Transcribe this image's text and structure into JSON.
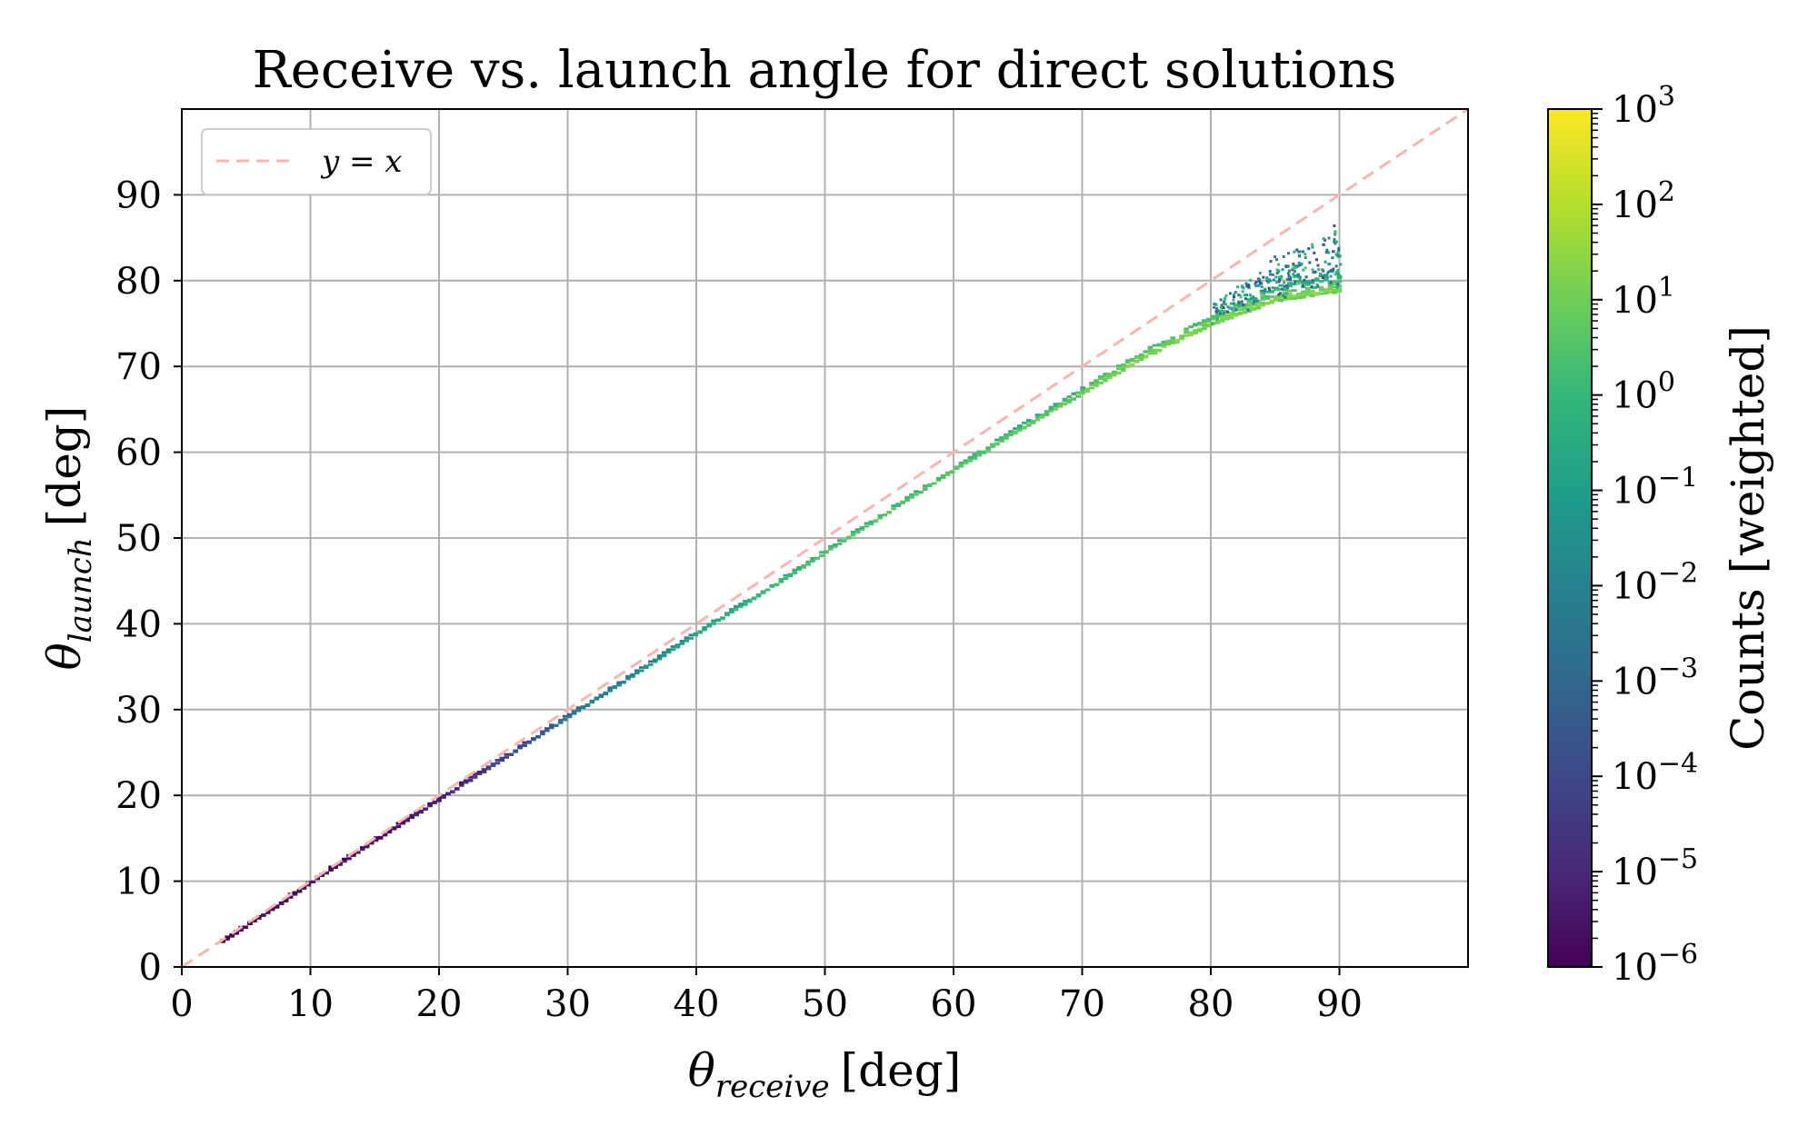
{
  "chart_data": {
    "type": "heatmap",
    "title": "Receive vs. launch angle for direct solutions",
    "xlabel": "θreceive [deg]",
    "ylabel": "θlaunch [deg]",
    "xlabel_symbol": "θ",
    "xlabel_subscript": "receive",
    "xlabel_unit": "[deg]",
    "ylabel_symbol": "θ",
    "ylabel_subscript": "launch",
    "ylabel_unit": "[deg]",
    "xlim": [
      0,
      100
    ],
    "ylim": [
      0,
      100
    ],
    "xticks": [
      0,
      10,
      20,
      30,
      40,
      50,
      60,
      70,
      80,
      90
    ],
    "xtick_labels": [
      "0",
      "10",
      "20",
      "30",
      "40",
      "50",
      "60",
      "70",
      "80",
      "90"
    ],
    "yticks": [
      0,
      10,
      20,
      30,
      40,
      50,
      60,
      70,
      80,
      90
    ],
    "ytick_labels": [
      "0",
      "10",
      "20",
      "30",
      "40",
      "50",
      "60",
      "70",
      "80",
      "90"
    ],
    "grid": true,
    "legend": {
      "placement": "top-left",
      "entries": [
        {
          "label": "y = x",
          "style": "dashed",
          "color": "#f7b6b2"
        }
      ]
    },
    "reference_line": {
      "name": "y = x",
      "x": [
        0,
        100
      ],
      "y": [
        0,
        100
      ],
      "color": "#f7b6b2",
      "dash": true
    },
    "colorbar": {
      "label": "Counts [weighted]",
      "scale": "log",
      "range": [
        1e-06,
        1000
      ],
      "ticks": [
        {
          "value": 1e-06,
          "base": "10",
          "exp": "−6"
        },
        {
          "value": 1e-05,
          "base": "10",
          "exp": "−5"
        },
        {
          "value": 0.0001,
          "base": "10",
          "exp": "−4"
        },
        {
          "value": 0.001,
          "base": "10",
          "exp": "−3"
        },
        {
          "value": 0.01,
          "base": "10",
          "exp": "−2"
        },
        {
          "value": 0.1,
          "base": "10",
          "exp": "−1"
        },
        {
          "value": 1,
          "base": "10",
          "exp": "0"
        },
        {
          "value": 10,
          "base": "10",
          "exp": "1"
        },
        {
          "value": 100,
          "base": "10",
          "exp": "2"
        },
        {
          "value": 1000,
          "base": "10",
          "exp": "3"
        }
      ],
      "colormap": [
        "#440154",
        "#482878",
        "#3e4989",
        "#31688e",
        "#26828e",
        "#1f9e89",
        "#35b779",
        "#6ece58",
        "#b5de2b",
        "#fde725"
      ]
    },
    "density_ridge": {
      "description": "main locus of histogram counts",
      "points": [
        {
          "x": 3,
          "y": 2.9,
          "log10_count": -5.5
        },
        {
          "x": 7,
          "y": 6.8,
          "log10_count": -5.2
        },
        {
          "x": 10,
          "y": 9.9,
          "log10_count": -5.0
        },
        {
          "x": 15,
          "y": 14.8,
          "log10_count": -5.0
        },
        {
          "x": 20,
          "y": 19.6,
          "log10_count": -4.5
        },
        {
          "x": 25,
          "y": 24.4,
          "log10_count": -3.5
        },
        {
          "x": 30,
          "y": 29.2,
          "log10_count": -2.0
        },
        {
          "x": 35,
          "y": 34.0,
          "log10_count": -1.0
        },
        {
          "x": 40,
          "y": 38.9,
          "log10_count": 0.0
        },
        {
          "x": 45,
          "y": 43.6,
          "log10_count": 0.5
        },
        {
          "x": 50,
          "y": 48.4,
          "log10_count": 1.0
        },
        {
          "x": 55,
          "y": 53.2,
          "log10_count": 1.0
        },
        {
          "x": 60,
          "y": 58.0,
          "log10_count": 1.2
        },
        {
          "x": 65,
          "y": 62.6,
          "log10_count": 1.3
        },
        {
          "x": 70,
          "y": 67.0,
          "log10_count": 1.5
        },
        {
          "x": 75,
          "y": 71.3,
          "log10_count": 1.6
        },
        {
          "x": 80,
          "y": 75.0,
          "log10_count": 1.7
        },
        {
          "x": 85,
          "y": 77.8,
          "log10_count": 1.8
        },
        {
          "x": 90,
          "y": 79.0,
          "log10_count": 1.8
        }
      ]
    }
  }
}
